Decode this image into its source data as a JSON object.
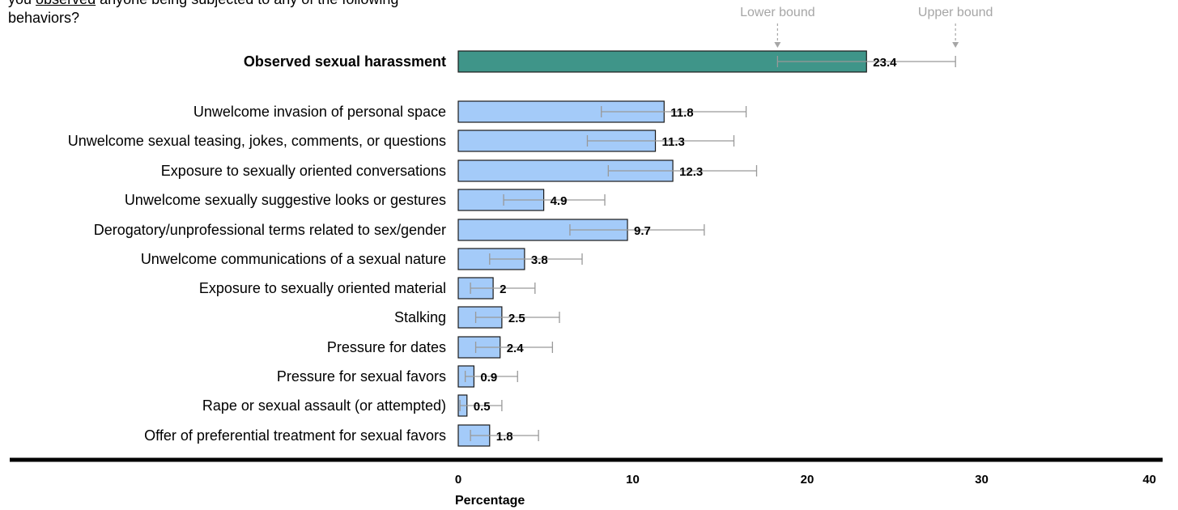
{
  "question": {
    "line1": "",
    "line2_prefix": "you ",
    "line2_underlined": "observed",
    "line2_suffix": " anyone being subjected to any of the following",
    "line3": "behaviors?"
  },
  "legend": {
    "lower_label": "Lower bound",
    "upper_label": "Upper bound",
    "lower_marker_value": 18.3,
    "upper_marker_value": 28.5
  },
  "colors": {
    "highlight_bar": "#3f9589",
    "bar": "#a4cbf9",
    "bar_stroke": "#1a1a1a",
    "error_bar": "#999999",
    "legend_text": "#a6a6a6"
  },
  "chart_data": {
    "type": "bar",
    "orientation": "horizontal",
    "categories": [
      "Observed sexual harassment",
      "Unwelcome invasion of personal space",
      "Unwelcome sexual teasing, jokes, comments, or questions",
      "Exposure to sexually oriented conversations",
      "Unwelcome sexually suggestive looks or gestures",
      "Derogatory/unprofessional terms related to sex/gender",
      "Unwelcome communications of a sexual nature",
      "Exposure to sexually oriented material",
      "Stalking",
      "Pressure for dates",
      "Pressure for sexual favors",
      "Rape or sexual assault (or attempted)",
      "Offer of preferential treatment for sexual favors"
    ],
    "values": [
      23.4,
      11.8,
      11.3,
      12.3,
      4.9,
      9.7,
      3.8,
      2,
      2.5,
      2.4,
      0.9,
      0.5,
      1.8
    ],
    "value_labels": [
      "23.4",
      "11.8",
      "11.3",
      "12.3",
      "4.9",
      "9.7",
      "3.8",
      "2",
      "2.5",
      "2.4",
      "0.9",
      "0.5",
      "1.8"
    ],
    "lower": [
      18.3,
      8.2,
      7.4,
      8.6,
      2.6,
      6.4,
      1.8,
      0.7,
      1.0,
      1.0,
      0.4,
      0.1,
      0.7
    ],
    "upper": [
      28.5,
      16.5,
      15.8,
      17.1,
      8.4,
      14.1,
      7.1,
      4.4,
      5.8,
      5.4,
      3.4,
      2.5,
      4.6
    ],
    "highlight": [
      true,
      false,
      false,
      false,
      false,
      false,
      false,
      false,
      false,
      false,
      false,
      false,
      false
    ],
    "xlabel": "Percentage",
    "xlim": [
      0,
      40
    ],
    "xticks": [
      0,
      10,
      20,
      30,
      40
    ],
    "grid": false
  }
}
